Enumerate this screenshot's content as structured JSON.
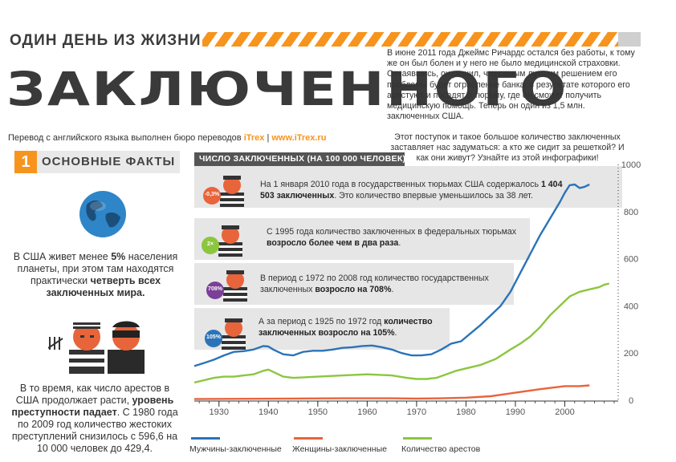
{
  "header": {
    "subtitle": "ОДИН ДЕНЬ ИЗ ЖИЗНИ",
    "title": "ЗАКЛЮЧЕННОГО"
  },
  "intro": {
    "p1": "В июне 2011 года Джеймс Ричардс остался без работы, к тому же он был болен и у него не было медицинской страховки. Отчаявшись, он решил, что самым лучшим решением его проблемы будет ограбление банка, в результате которого его арестуют и посадят в тюрьму, где он сможет получить медицинскую помощь. Теперь он один из 1,5 млн. заключенных США.",
    "p2": "Этот поступок и такое большое количество заключенных заставляет нас задуматься: а кто же сидит за решеткой? И как они живут? Узнайте из этой инфографики!"
  },
  "credit": {
    "text": "Перевод с английского языка выполнен бюро переводов",
    "brand": "iTrex",
    "sep": "|",
    "url": "www.iTrex.ru"
  },
  "section": {
    "number": "1",
    "title": "ОСНОВНЫЕ ФАКТЫ"
  },
  "facts": {
    "f1_a": "В США живет менее ",
    "f1_b": "5%",
    "f1_c": " населения планеты, при этом там находятся практически ",
    "f1_d": "четверть всех заключенных мира.",
    "f2_a": "В то время, как число арестов в США продолжает расти, ",
    "f2_b": "уровень преступности падает",
    "f2_c": ". С 1980 года по 2009 год количество жестоких преступлений снизилось с 596,6 на 10 000 человек до 429,4."
  },
  "bubbles": [
    {
      "badge": "-0,3%",
      "t1": "На 1 января 2010 года в государственных тюрьмах США содержалось ",
      "b": "1 404 503 заключенных",
      "t2": ". Это количество впервые уменьшилось за 38 лет."
    },
    {
      "badge": "2×",
      "t1": "С 1995 года количество заключенных в федеральных тюрьмах ",
      "b": "возросло более чем в два раза",
      "t2": "."
    },
    {
      "badge": "708%",
      "t1": "В период с 1972 по 2008 год количество государственных заключенных ",
      "b": "возросло на 708%",
      "t2": "."
    },
    {
      "badge": "105%",
      "t1": "А за период с 1925 по 1972 год ",
      "b": "количество заключенных возросло на 105%",
      "t2": "."
    }
  ],
  "colors": {
    "accent": "#f7941d",
    "men": "#2b73b9",
    "women": "#e8643b",
    "arrests": "#8cc63f",
    "band": "#e6e6e6",
    "dark": "#3a3a3a"
  },
  "chart_data": {
    "type": "line",
    "title": "ЧИСЛО ЗАКЛЮЧЕННЫХ (НА 100 000 ЧЕЛОВЕК)",
    "xlim": [
      1925,
      2010
    ],
    "ylim": [
      0,
      1000
    ],
    "xticks": [
      1930,
      1940,
      1950,
      1960,
      1970,
      1980,
      1990,
      2000
    ],
    "yticks": [
      0,
      200,
      400,
      600,
      800,
      1000
    ],
    "legend_position": "bottom",
    "grid": false,
    "series": [
      {
        "name": "Мужчины-заключенные",
        "color": "#2b73b9",
        "points": [
          [
            1925,
            145
          ],
          [
            1927,
            158
          ],
          [
            1929,
            172
          ],
          [
            1931,
            190
          ],
          [
            1933,
            205
          ],
          [
            1935,
            208
          ],
          [
            1937,
            215
          ],
          [
            1939,
            230
          ],
          [
            1940,
            228
          ],
          [
            1941,
            215
          ],
          [
            1943,
            195
          ],
          [
            1945,
            190
          ],
          [
            1947,
            205
          ],
          [
            1949,
            210
          ],
          [
            1951,
            210
          ],
          [
            1953,
            215
          ],
          [
            1955,
            222
          ],
          [
            1957,
            225
          ],
          [
            1959,
            230
          ],
          [
            1961,
            232
          ],
          [
            1963,
            225
          ],
          [
            1965,
            215
          ],
          [
            1967,
            200
          ],
          [
            1969,
            190
          ],
          [
            1971,
            190
          ],
          [
            1973,
            195
          ],
          [
            1975,
            215
          ],
          [
            1977,
            240
          ],
          [
            1979,
            250
          ],
          [
            1981,
            285
          ],
          [
            1983,
            320
          ],
          [
            1985,
            360
          ],
          [
            1987,
            400
          ],
          [
            1989,
            460
          ],
          [
            1991,
            540
          ],
          [
            1993,
            620
          ],
          [
            1995,
            700
          ],
          [
            1997,
            770
          ],
          [
            1999,
            840
          ],
          [
            2000,
            880
          ],
          [
            2001,
            912
          ],
          [
            2002,
            915
          ],
          [
            2003,
            900
          ],
          [
            2004,
            905
          ],
          [
            2005,
            915
          ]
        ]
      },
      {
        "name": "Женщины-заключенные",
        "color": "#e8643b",
        "points": [
          [
            1925,
            5
          ],
          [
            1935,
            6
          ],
          [
            1945,
            7
          ],
          [
            1955,
            8
          ],
          [
            1965,
            8
          ],
          [
            1970,
            7
          ],
          [
            1975,
            8
          ],
          [
            1980,
            11
          ],
          [
            1985,
            17
          ],
          [
            1990,
            32
          ],
          [
            1995,
            47
          ],
          [
            2000,
            60
          ],
          [
            2003,
            60
          ],
          [
            2005,
            63
          ]
        ]
      },
      {
        "name": "Количество арестов",
        "color": "#8cc63f",
        "points": [
          [
            1925,
            75
          ],
          [
            1927,
            85
          ],
          [
            1929,
            95
          ],
          [
            1931,
            100
          ],
          [
            1933,
            100
          ],
          [
            1935,
            105
          ],
          [
            1937,
            110
          ],
          [
            1939,
            125
          ],
          [
            1940,
            130
          ],
          [
            1941,
            120
          ],
          [
            1943,
            100
          ],
          [
            1945,
            95
          ],
          [
            1950,
            100
          ],
          [
            1955,
            105
          ],
          [
            1960,
            110
          ],
          [
            1965,
            105
          ],
          [
            1968,
            95
          ],
          [
            1970,
            90
          ],
          [
            1972,
            90
          ],
          [
            1974,
            95
          ],
          [
            1976,
            110
          ],
          [
            1978,
            125
          ],
          [
            1980,
            135
          ],
          [
            1983,
            150
          ],
          [
            1986,
            175
          ],
          [
            1989,
            215
          ],
          [
            1991,
            240
          ],
          [
            1993,
            270
          ],
          [
            1995,
            310
          ],
          [
            1997,
            360
          ],
          [
            1999,
            400
          ],
          [
            2001,
            440
          ],
          [
            2003,
            460
          ],
          [
            2005,
            470
          ],
          [
            2007,
            480
          ],
          [
            2008,
            490
          ],
          [
            2009,
            495
          ]
        ]
      }
    ]
  }
}
